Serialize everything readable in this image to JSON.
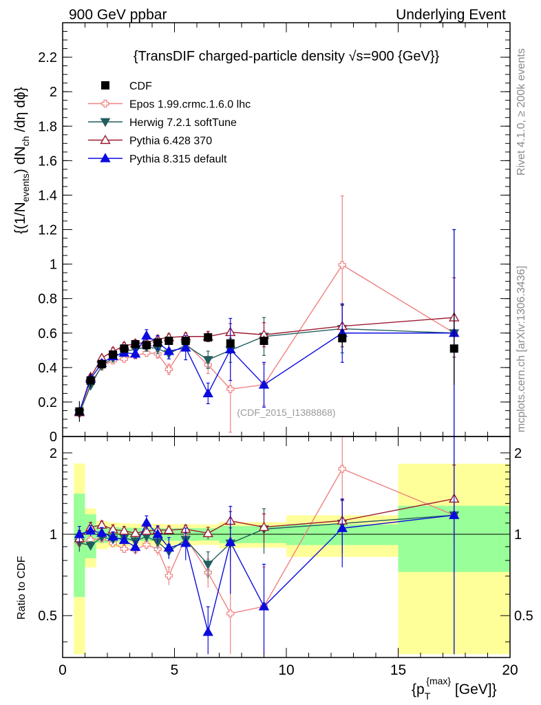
{
  "header": {
    "left": "900 GeV ppbar",
    "right": "Underlying Event"
  },
  "side_labels": {
    "rivet": "Rivet 4.1.0, ≥ 200k events",
    "mcplots": "mcplots.cern.ch [arXiv:1306.3436]"
  },
  "chart_data": {
    "type": "line",
    "title": "{TransDIF charged-particle density √s=900 {GeV}}",
    "analysis_tag": "(CDF_2015_I1388868)",
    "xlabel": "{p_T^{max}} [GeV]}",
    "ylabel": "{(1/N_events) dN_ch/dη dϕ}",
    "ratio_ylabel": "Ratio to CDF",
    "xlim": [
      0,
      20
    ],
    "ylim": [
      0,
      2.4
    ],
    "ratio_ylim": [
      0.35,
      2.3
    ],
    "x_ticks": [
      "0",
      "5",
      "10",
      "15",
      "20"
    ],
    "y_ticks": [
      "0",
      "0.2",
      "0.4",
      "0.6",
      "0.8",
      "1",
      "1.2",
      "1.4",
      "1.6",
      "1.8",
      "2",
      "2.2"
    ],
    "ratio_ticks": [
      "0.5",
      "1",
      "2"
    ],
    "x": [
      0.75,
      1.25,
      1.75,
      2.25,
      2.75,
      3.25,
      3.75,
      4.25,
      4.75,
      5.5,
      6.5,
      7.5,
      9.0,
      12.5,
      17.5
    ],
    "x_bins": [
      [
        0.5,
        1.0
      ],
      [
        1.0,
        1.5
      ],
      [
        1.5,
        2.0
      ],
      [
        2.0,
        2.5
      ],
      [
        2.5,
        3.0
      ],
      [
        3.0,
        3.5
      ],
      [
        3.5,
        4.0
      ],
      [
        4.0,
        4.5
      ],
      [
        4.5,
        5.0
      ],
      [
        5.0,
        6.0
      ],
      [
        6.0,
        7.0
      ],
      [
        7.0,
        8.0
      ],
      [
        8.0,
        10.0
      ],
      [
        10.0,
        15.0
      ],
      [
        15.0,
        20.0
      ]
    ],
    "reference": {
      "name": "CDF",
      "values": [
        0.145,
        0.325,
        0.42,
        0.475,
        0.51,
        0.535,
        0.53,
        0.545,
        0.555,
        0.555,
        0.575,
        0.54,
        0.555,
        0.57,
        0.51
      ],
      "band_stat": [
        0.06,
        0.06,
        0.03,
        0.03,
        0.03,
        0.03,
        0.03,
        0.03,
        0.03,
        0.03,
        0.03,
        0.04,
        0.04,
        0.05,
        0.14
      ],
      "band_total": [
        0.12,
        0.08,
        0.05,
        0.05,
        0.05,
        0.05,
        0.05,
        0.05,
        0.05,
        0.05,
        0.05,
        0.06,
        0.06,
        0.1,
        0.42
      ]
    },
    "series": [
      {
        "name": "Epos 1.99.crmc.1.6.0 lhc",
        "color": "#f08080",
        "marker": "cross-open",
        "values": [
          0.135,
          0.31,
          0.405,
          0.44,
          0.45,
          0.47,
          0.485,
          0.48,
          0.39,
          0.54,
          0.415,
          0.275,
          0.3,
          0.995,
          0.6
        ],
        "errors": [
          0.01,
          0.01,
          0.01,
          0.01,
          0.015,
          0.02,
          0.02,
          0.025,
          0.03,
          0.04,
          0.05,
          0.25,
          0.12,
          0.4,
          0.01
        ]
      },
      {
        "name": "Herwig 7.2.1 softTune",
        "color": "#215e5e",
        "marker": "triangle-down",
        "values": [
          0.135,
          0.295,
          0.41,
          0.455,
          0.495,
          0.505,
          0.52,
          0.51,
          0.48,
          0.53,
          0.445,
          0.5,
          0.58,
          0.625,
          0.6
        ],
        "errors": [
          0.01,
          0.01,
          0.01,
          0.015,
          0.02,
          0.02,
          0.025,
          0.03,
          0.03,
          0.03,
          0.05,
          0.07,
          0.11,
          0.14,
          0.6
        ]
      },
      {
        "name": "Pythia 6.428 370",
        "color": "#9b1b30",
        "marker": "triangle-up-open",
        "values": [
          0.14,
          0.345,
          0.455,
          0.495,
          0.525,
          0.54,
          0.545,
          0.565,
          0.575,
          0.58,
          0.58,
          0.605,
          0.59,
          0.64,
          0.69
        ],
        "errors": [
          0.01,
          0.015,
          0.015,
          0.02,
          0.02,
          0.02,
          0.02,
          0.02,
          0.02,
          0.02,
          0.03,
          0.05,
          0.07,
          0.12,
          0.23
        ]
      },
      {
        "name": "Pythia 8.315 default",
        "color": "#0b0bdf",
        "marker": "triangle-up",
        "values": [
          0.145,
          0.335,
          0.425,
          0.465,
          0.485,
          0.48,
          0.585,
          0.545,
          0.495,
          0.515,
          0.25,
          0.505,
          0.3,
          0.6,
          0.6
        ],
        "errors": [
          0.01,
          0.015,
          0.02,
          0.02,
          0.02,
          0.025,
          0.035,
          0.04,
          0.045,
          0.07,
          0.06,
          0.18,
          0.13,
          0.17,
          0.6
        ]
      }
    ]
  }
}
